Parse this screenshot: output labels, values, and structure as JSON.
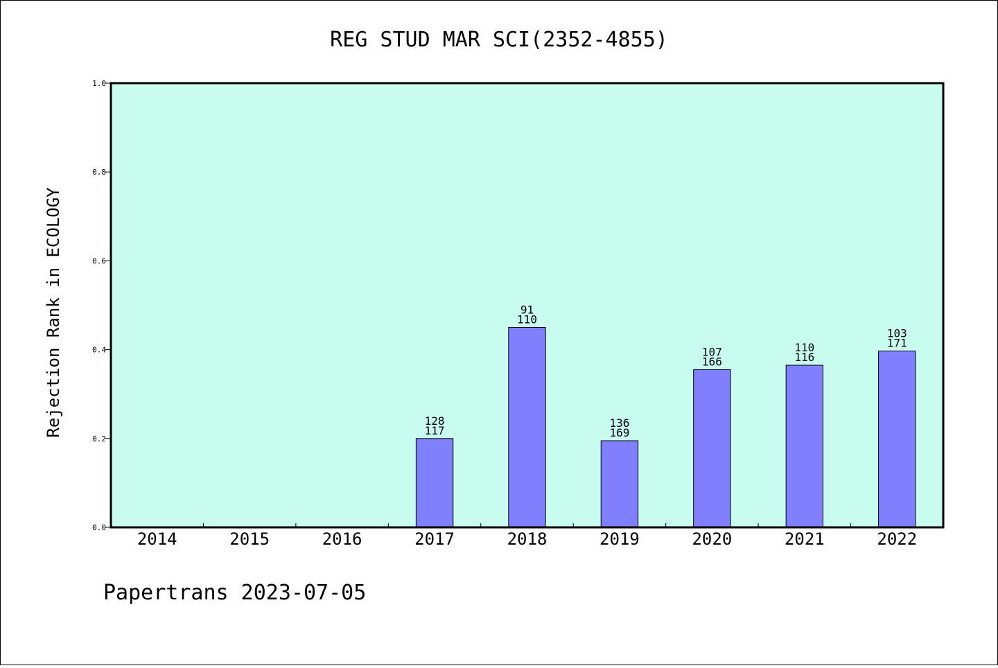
{
  "chart_data": {
    "type": "bar",
    "title": "REG STUD MAR SCI(2352-4855)",
    "xlabel": "",
    "ylabel": "Rejection Rank in ECOLOGY",
    "ylim": [
      0,
      1.0
    ],
    "yticks": [
      "0.0",
      "0.2",
      "0.4",
      "0.6",
      "0.8",
      "1.0"
    ],
    "categories": [
      "2014",
      "2015",
      "2016",
      "2017",
      "2018",
      "2019",
      "2020",
      "2021",
      "2022"
    ],
    "values": [
      null,
      null,
      null,
      0.2,
      0.45,
      0.195,
      0.355,
      0.365,
      0.397
    ],
    "label_top": [
      "",
      "",
      "",
      "128",
      "91",
      "136",
      "107",
      "110",
      "103"
    ],
    "label_bottom": [
      "",
      "",
      "",
      "117",
      "110",
      "169",
      "166",
      "116",
      "171"
    ],
    "grid": false,
    "legend": "none"
  },
  "footer": {
    "text": "Papertrans 2023-07-05"
  },
  "colors": {
    "plot_background": "#c8fcee",
    "bar_fill": "#8080ff",
    "bar_stroke": "#000000",
    "axis": "#000000"
  }
}
